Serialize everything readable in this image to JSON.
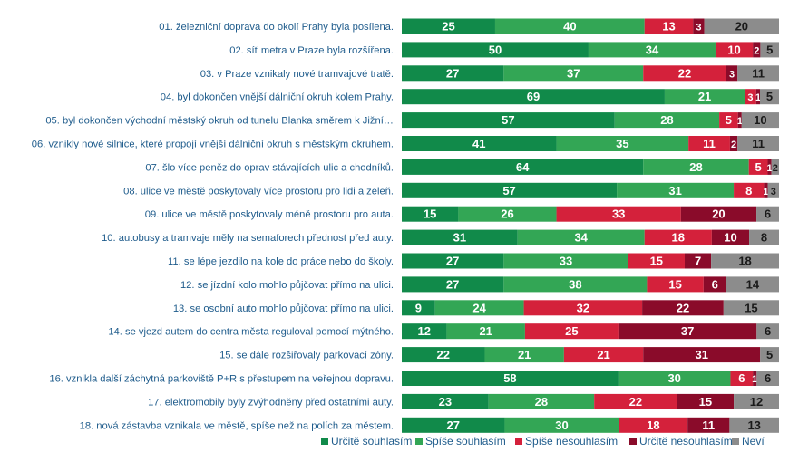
{
  "chart_data": {
    "type": "bar",
    "orientation": "horizontal",
    "stacked": true,
    "normalized": true,
    "legend_position": "bottom",
    "categories": [
      "01. železniční doprava do okolí Prahy byla posílena.",
      "02. síť metra v Praze byla rozšířena.",
      "03. v Praze vznikaly nové tramvajové tratě.",
      "04. byl dokončen vnější dálniční okruh kolem Prahy.",
      "05. byl dokončen východní městský okruh od tunelu Blanka směrem k Jižní…",
      "06. vznikly nové silnice, které propojí vnější dálniční okruh s městským okruhem.",
      "07. šlo více peněz do oprav stávajících ulic a chodníků.",
      "08. ulice ve městě poskytovaly více prostoru pro lidi a zeleň.",
      "09. ulice ve městě poskytovaly méně prostoru pro auta.",
      "10. autobusy a tramvaje měly na semaforech přednost před auty.",
      "11. se lépe jezdilo na kole do práce nebo do školy.",
      "12. se jízdní kolo mohlo půjčovat přímo na ulici.",
      "13. se osobní auto mohlo půjčovat přímo na ulici.",
      "14. se vjezd autem do centra města reguloval pomocí mýtného.",
      "15. se dále rozšiřovaly parkovací zóny.",
      "16. vznikla další záchytná parkoviště P+R s přestupem na veřejnou dopravu.",
      "17. elektromobily byly zvýhodněny před ostatními auty.",
      "18. nová zástavba vznikala ve městě, spíše než na polích za městem."
    ],
    "series": [
      {
        "name": "Určitě souhlasím",
        "color": "#118a4a",
        "text_color": "#ffffff",
        "values": [
          25,
          50,
          27,
          69,
          57,
          41,
          64,
          57,
          15,
          31,
          27,
          27,
          9,
          12,
          22,
          58,
          23,
          27
        ]
      },
      {
        "name": "Spíše souhlasím",
        "color": "#33a655",
        "text_color": "#ffffff",
        "values": [
          40,
          34,
          37,
          21,
          28,
          35,
          28,
          31,
          26,
          34,
          33,
          38,
          24,
          21,
          21,
          30,
          28,
          30
        ]
      },
      {
        "name": "Spíše nesouhlasím",
        "color": "#d4213b",
        "text_color": "#ffffff",
        "values": [
          13,
          10,
          22,
          3,
          5,
          11,
          5,
          8,
          33,
          18,
          15,
          15,
          32,
          25,
          21,
          6,
          22,
          18
        ]
      },
      {
        "name": "Určitě nesouhlasím",
        "color": "#8a0b2a",
        "text_color": "#ffffff",
        "values": [
          3,
          2,
          3,
          1,
          1,
          2,
          1,
          1,
          20,
          10,
          7,
          6,
          22,
          37,
          31,
          1,
          15,
          11
        ]
      },
      {
        "name": "Neví",
        "color": "#8c8c8c",
        "text_color": "#1a1a1a",
        "values": [
          20,
          5,
          11,
          5,
          10,
          11,
          2,
          3,
          6,
          8,
          18,
          14,
          15,
          6,
          5,
          6,
          12,
          13
        ]
      }
    ]
  }
}
